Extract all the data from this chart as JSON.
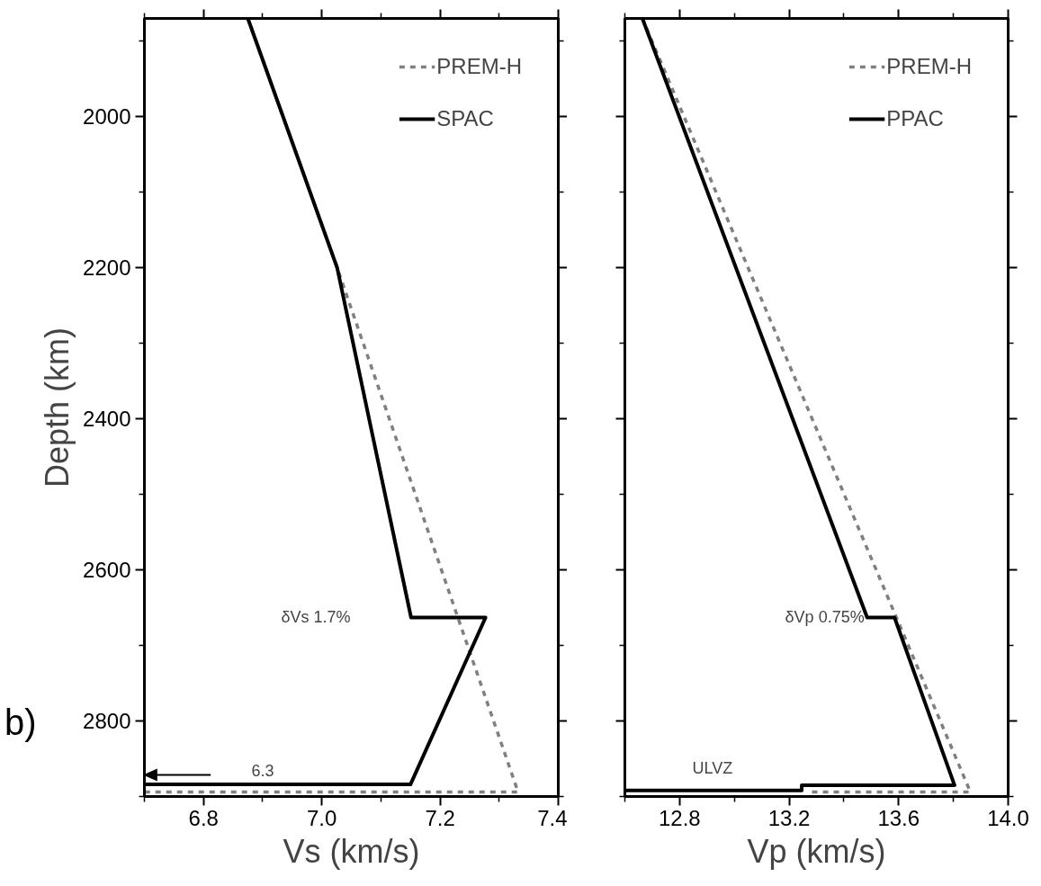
{
  "chart_data": [
    {
      "type": "line",
      "xlabel": "Vs (km/s)",
      "ylabel": "Depth (km)",
      "xlim": [
        6.7,
        7.4
      ],
      "ylim": [
        2900,
        1870
      ],
      "xticks": [
        {
          "value": 6.7,
          "label": null
        },
        6.8,
        {
          "value": 6.9,
          "label": null
        },
        {
          "value": 7.0,
          "label": "7.0"
        },
        {
          "value": 7.1,
          "label": null
        },
        7.2,
        {
          "value": 7.3,
          "label": null
        },
        7.4
      ],
      "yticks": [
        {
          "value": 1900,
          "label": null
        },
        2000,
        {
          "value": 2100,
          "label": null
        },
        2200,
        {
          "value": 2300,
          "label": null
        },
        2400,
        {
          "value": 2500,
          "label": null
        },
        2600,
        {
          "value": 2700,
          "label": null
        },
        2800,
        {
          "value": 2900,
          "label": null
        }
      ],
      "legend": "top right",
      "grid": false,
      "series": [
        {
          "name": "PREM-H",
          "color": "#808080",
          "line_style": "dashed",
          "x": [
            6.875,
            7.026,
            7.332,
            6.7
          ],
          "values": [
            1870,
            2200,
            2894,
            2894
          ]
        },
        {
          "name": "SPAC",
          "color": "#000000",
          "line_style": "solid",
          "x": [
            6.875,
            7.026,
            7.151,
            7.277,
            7.15,
            6.7
          ],
          "values": [
            1870,
            2200,
            2663,
            2663,
            2884,
            2884
          ]
        }
      ],
      "annotations": [
        "δVs 1.7%",
        "6.3",
        "b)"
      ]
    },
    {
      "type": "line",
      "xlabel": "Vp (km/s)",
      "xlim": [
        12.6,
        14.0
      ],
      "ylim": [
        2900,
        1870
      ],
      "xticks": [
        {
          "value": 12.6,
          "label": null
        },
        12.8,
        {
          "value": 13.0,
          "label": null
        },
        13.2,
        {
          "value": 13.4,
          "label": null
        },
        13.6,
        {
          "value": 13.8,
          "label": null
        },
        {
          "value": 14.0,
          "label": "14.0"
        }
      ],
      "yticks": [
        {
          "value": 1900,
          "label": null
        },
        2000,
        {
          "value": 2100,
          "label": null
        },
        2200,
        {
          "value": 2300,
          "label": null
        },
        2400,
        {
          "value": 2500,
          "label": null
        },
        2600,
        {
          "value": 2700,
          "label": null
        },
        2800,
        {
          "value": 2900,
          "label": null
        }
      ],
      "tick_labels": "x",
      "legend": "top right",
      "grid": false,
      "series": [
        {
          "name": "PREM-H",
          "color": "#808080",
          "line_style": "dashed",
          "x": [
            12.664,
            13.862,
            13.27
          ],
          "values": [
            1870,
            2894,
            2894
          ]
        },
        {
          "name": "PPAC",
          "color": "#000000",
          "line_style": "solid",
          "x": [
            12.664,
            13.485,
            13.585,
            13.804,
            13.246,
            13.246,
            12.6
          ],
          "values": [
            1870,
            2663,
            2663,
            2885,
            2885,
            2892,
            2892
          ]
        }
      ],
      "annotations": [
        "δVp 0.75%",
        "ULVZ"
      ]
    }
  ]
}
